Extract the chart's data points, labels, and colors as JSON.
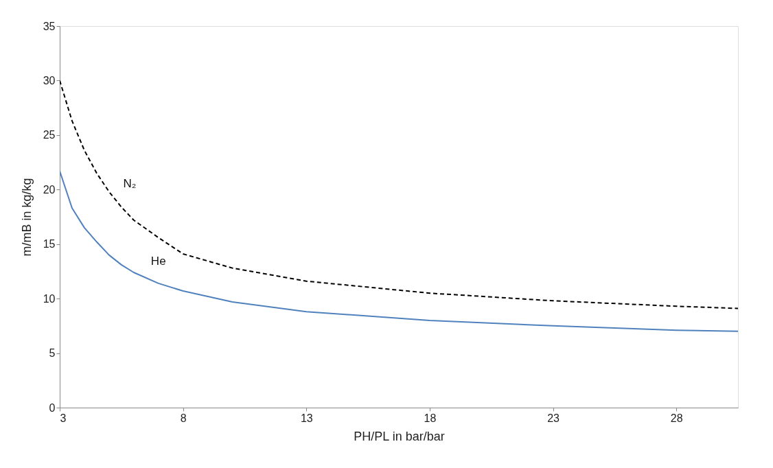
{
  "chart_data": {
    "type": "line",
    "xlabel": "PH/PL  in bar/bar",
    "ylabel": "m/mB  in kg/kg",
    "xlim": [
      3,
      30.5
    ],
    "xticks": [
      3,
      8,
      13,
      18,
      23,
      28
    ],
    "ylim": [
      0,
      35
    ],
    "yticks": [
      0,
      5,
      10,
      15,
      20,
      25,
      30,
      35
    ],
    "grid": false,
    "marker": "none",
    "series": [
      {
        "name": "N₂",
        "color": "#000000",
        "line_style": "dashed",
        "x": [
          3,
          3.5,
          4,
          4.5,
          5,
          5.5,
          6,
          7,
          8,
          10,
          13,
          18,
          23,
          28,
          30.5
        ],
        "values": [
          30.0,
          26.3,
          23.6,
          21.5,
          19.8,
          18.4,
          17.2,
          15.6,
          14.1,
          12.8,
          11.6,
          10.5,
          9.8,
          9.3,
          9.1
        ]
      },
      {
        "name": "He",
        "color": "#4f81bd",
        "line_style": "solid",
        "x": [
          3,
          3.5,
          4,
          4.5,
          5,
          5.5,
          6,
          7,
          8,
          10,
          13,
          18,
          23,
          28,
          30.5
        ],
        "values": [
          21.7,
          18.3,
          16.5,
          15.2,
          14.0,
          13.1,
          12.4,
          11.4,
          10.7,
          9.7,
          8.8,
          8.0,
          7.5,
          7.1,
          7.0
        ]
      }
    ]
  }
}
